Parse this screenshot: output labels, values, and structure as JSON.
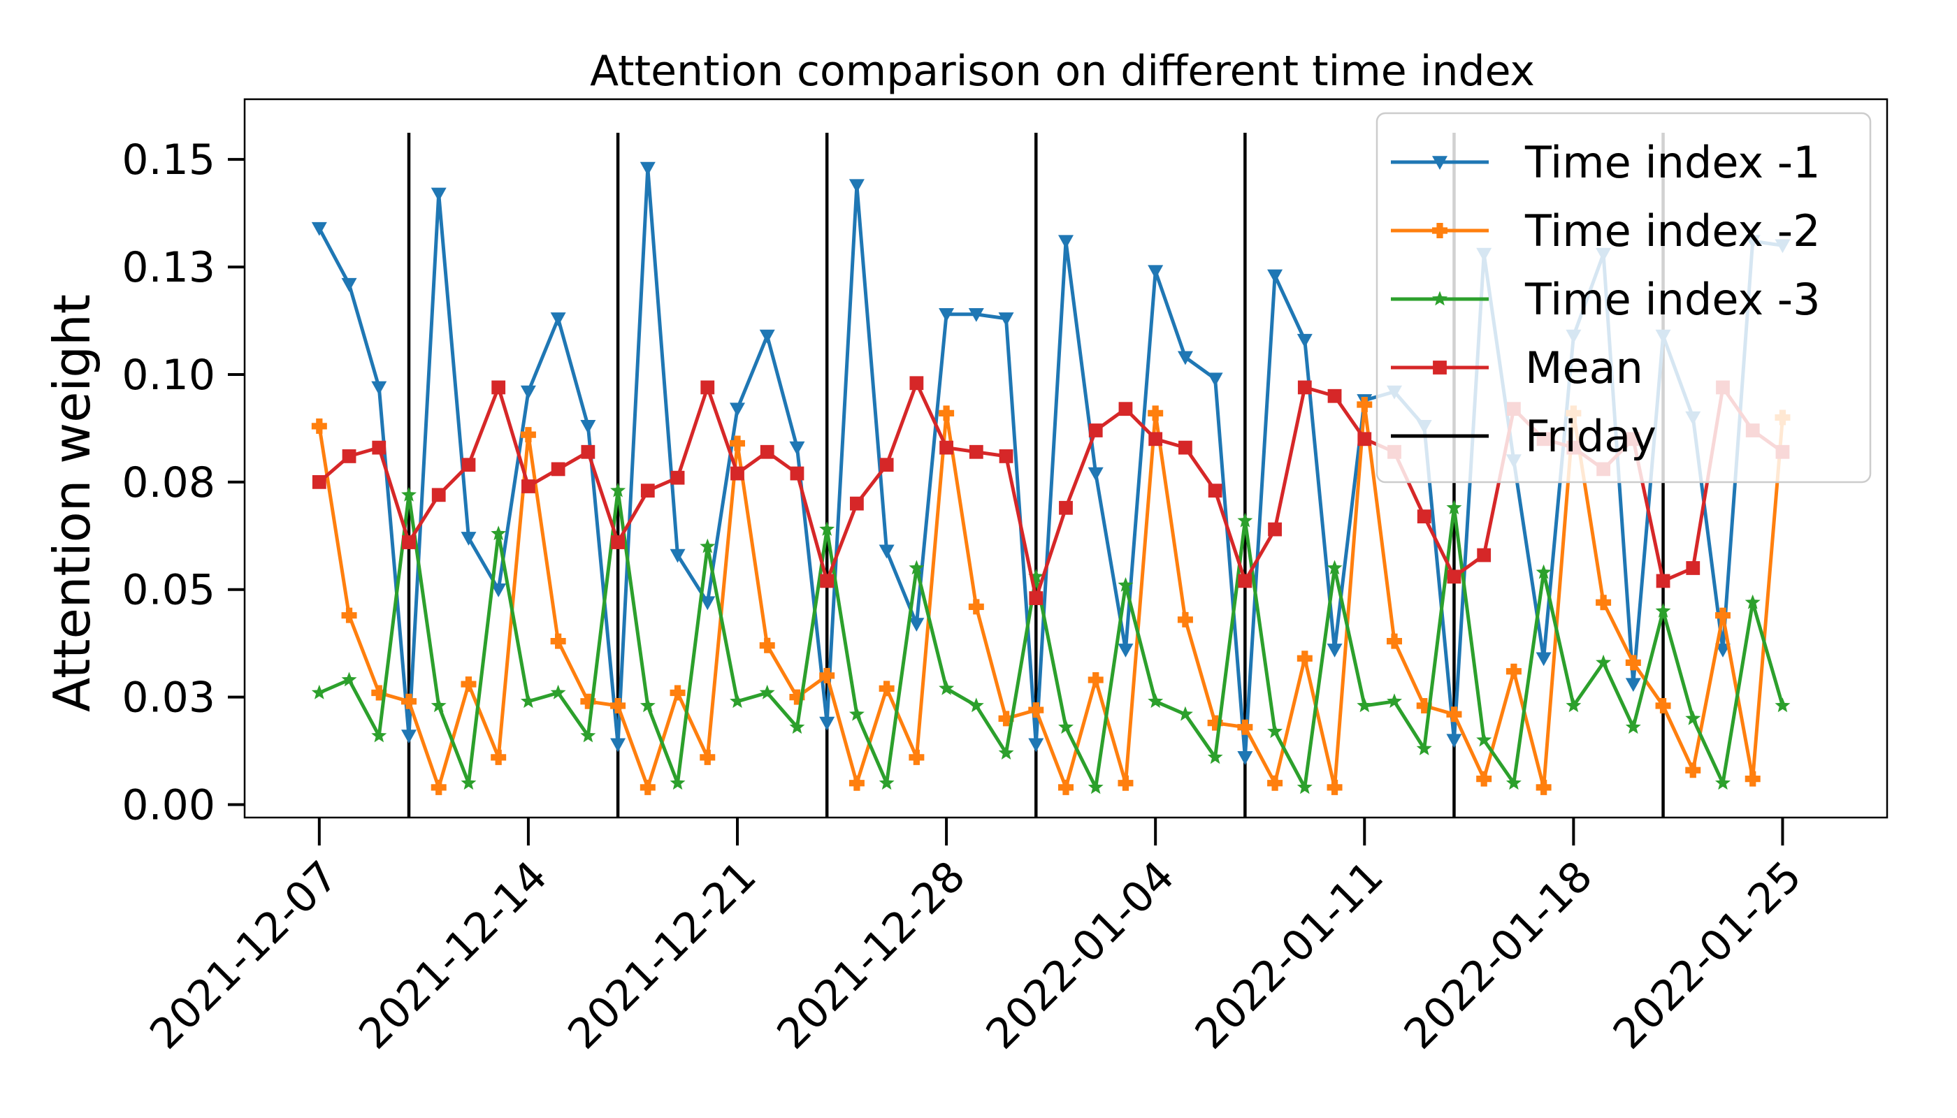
{
  "chart_data": {
    "type": "line",
    "title": "Attention comparison on different time index",
    "xlabel": "",
    "ylabel": "Attention weight",
    "ylim": [
      -0.003,
      0.164
    ],
    "xlim": [
      "2021-12-04 12:00",
      "2022-01-28 12:00"
    ],
    "grid": false,
    "legend_position": "top-right",
    "y_ticks": [
      {
        "value": 0.0,
        "label": "0.00"
      },
      {
        "value": 0.025,
        "label": "0.03"
      },
      {
        "value": 0.05,
        "label": "0.05"
      },
      {
        "value": 0.075,
        "label": "0.08"
      },
      {
        "value": 0.1,
        "label": "0.10"
      },
      {
        "value": 0.125,
        "label": "0.13"
      },
      {
        "value": 0.15,
        "label": "0.15"
      }
    ],
    "x_ticks": [
      "2021-12-07",
      "2021-12-14",
      "2021-12-21",
      "2021-12-28",
      "2022-01-04",
      "2022-01-11",
      "2022-01-18",
      "2022-01-25"
    ],
    "x": [
      "2021-12-07",
      "2021-12-08",
      "2021-12-09",
      "2021-12-10",
      "2021-12-11",
      "2021-12-12",
      "2021-12-13",
      "2021-12-14",
      "2021-12-15",
      "2021-12-16",
      "2021-12-17",
      "2021-12-18",
      "2021-12-19",
      "2021-12-20",
      "2021-12-21",
      "2021-12-22",
      "2021-12-23",
      "2021-12-24",
      "2021-12-25",
      "2021-12-26",
      "2021-12-27",
      "2021-12-28",
      "2021-12-29",
      "2021-12-30",
      "2021-12-31",
      "2022-01-01",
      "2022-01-02",
      "2022-01-03",
      "2022-01-04",
      "2022-01-05",
      "2022-01-06",
      "2022-01-07",
      "2022-01-08",
      "2022-01-09",
      "2022-01-10",
      "2022-01-11",
      "2022-01-12",
      "2022-01-13",
      "2022-01-14",
      "2022-01-15",
      "2022-01-16",
      "2022-01-17",
      "2022-01-18",
      "2022-01-19",
      "2022-01-20",
      "2022-01-21",
      "2022-01-22",
      "2022-01-23",
      "2022-01-24",
      "2022-01-25"
    ],
    "series": [
      {
        "name": "Time index -1",
        "color": "#1f77b4",
        "marker": "triangle-down",
        "values": [
          0.134,
          0.121,
          0.097,
          0.016,
          0.142,
          0.062,
          0.05,
          0.096,
          0.113,
          0.088,
          0.014,
          0.148,
          0.058,
          0.047,
          0.092,
          0.109,
          0.083,
          0.019,
          0.144,
          0.059,
          0.042,
          0.114,
          0.114,
          0.113,
          0.014,
          0.131,
          0.077,
          0.036,
          0.124,
          0.104,
          0.099,
          0.011,
          0.123,
          0.108,
          0.036,
          0.094,
          0.096,
          0.088,
          0.015,
          0.128,
          0.08,
          0.034,
          0.109,
          0.128,
          0.028,
          0.109,
          0.09,
          0.036,
          0.131,
          0.13
        ]
      },
      {
        "name": "Time index -2",
        "color": "#ff7f0e",
        "marker": "plus-filled",
        "values": [
          0.088,
          0.044,
          0.026,
          0.024,
          0.004,
          0.028,
          0.011,
          0.086,
          0.038,
          0.024,
          0.023,
          0.004,
          0.026,
          0.011,
          0.084,
          0.037,
          0.025,
          0.03,
          0.005,
          0.027,
          0.011,
          0.091,
          0.046,
          0.02,
          0.022,
          0.004,
          0.029,
          0.005,
          0.091,
          0.043,
          0.019,
          0.018,
          0.005,
          0.034,
          0.004,
          0.093,
          0.038,
          0.023,
          0.021,
          0.006,
          0.031,
          0.004,
          0.091,
          0.047,
          0.033,
          0.023,
          0.008,
          0.044,
          0.006,
          0.09
        ]
      },
      {
        "name": "Time index -3",
        "color": "#2ca02c",
        "marker": "star",
        "values": [
          0.026,
          0.029,
          0.016,
          0.072,
          0.023,
          0.005,
          0.063,
          0.024,
          0.026,
          0.016,
          0.073,
          0.023,
          0.005,
          0.06,
          0.024,
          0.026,
          0.018,
          0.064,
          0.021,
          0.005,
          0.055,
          0.027,
          0.023,
          0.012,
          0.053,
          0.018,
          0.004,
          0.051,
          0.024,
          0.021,
          0.011,
          0.066,
          0.017,
          0.004,
          0.055,
          0.023,
          0.024,
          0.013,
          0.069,
          0.015,
          0.005,
          0.054,
          0.023,
          0.033,
          0.018,
          0.045,
          0.02,
          0.005,
          0.047,
          0.023
        ]
      },
      {
        "name": "Mean",
        "color": "#d62728",
        "marker": "square",
        "values": [
          0.075,
          0.081,
          0.083,
          0.061,
          0.072,
          0.079,
          0.097,
          0.074,
          0.078,
          0.082,
          0.061,
          0.073,
          0.076,
          0.097,
          0.077,
          0.082,
          0.077,
          0.052,
          0.07,
          0.079,
          0.098,
          0.083,
          0.082,
          0.081,
          0.048,
          0.069,
          0.087,
          0.092,
          0.085,
          0.083,
          0.073,
          0.052,
          0.064,
          0.097,
          0.095,
          0.085,
          0.082,
          0.067,
          0.053,
          0.058,
          0.092,
          0.085,
          0.083,
          0.078,
          0.085,
          0.052,
          0.055,
          0.097,
          0.087,
          0.082
        ]
      }
    ],
    "vertical_lines": {
      "name": "Friday",
      "color": "#000000",
      "x": [
        "2021-12-10",
        "2021-12-17",
        "2021-12-24",
        "2021-12-31",
        "2022-01-07",
        "2022-01-14",
        "2022-01-21"
      ]
    }
  }
}
